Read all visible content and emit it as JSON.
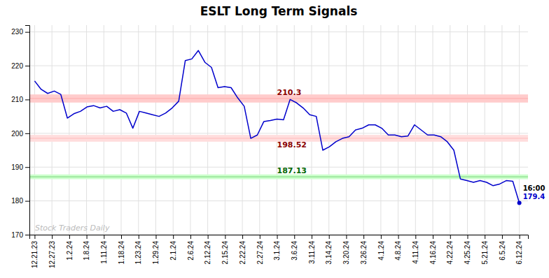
{
  "chart_data": {
    "type": "line",
    "title": "ESLT Long Term Signals",
    "color": "#0000cc",
    "grid": true,
    "ylim": [
      170,
      232
    ],
    "yticks": [
      170,
      180,
      190,
      200,
      210,
      220,
      230
    ],
    "xlim": [
      -0.3,
      28.5
    ],
    "xticks": [
      {
        "value": 0,
        "label": "12.21.23"
      },
      {
        "value": 1,
        "label": "12.27.23"
      },
      {
        "value": 2,
        "label": "1.2.24"
      },
      {
        "value": 3,
        "label": "1.8.24"
      },
      {
        "value": 4,
        "label": "1.11.24"
      },
      {
        "value": 5,
        "label": "1.18.24"
      },
      {
        "value": 6,
        "label": "1.23.24"
      },
      {
        "value": 7,
        "label": "1.29.24"
      },
      {
        "value": 8,
        "label": "2.1.24"
      },
      {
        "value": 9,
        "label": "2.6.24"
      },
      {
        "value": 10,
        "label": "2.12.24"
      },
      {
        "value": 11,
        "label": "2.15.24"
      },
      {
        "value": 12,
        "label": "2.22.24"
      },
      {
        "value": 13,
        "label": "2.27.24"
      },
      {
        "value": 14,
        "label": "3.1.24"
      },
      {
        "value": 15,
        "label": "3.6.24"
      },
      {
        "value": 16,
        "label": "3.11.24"
      },
      {
        "value": 17,
        "label": "3.14.24"
      },
      {
        "value": 18,
        "label": "3.20.24"
      },
      {
        "value": 19,
        "label": "3.26.24"
      },
      {
        "value": 20,
        "label": "4.1.24"
      },
      {
        "value": 21,
        "label": "4.8.24"
      },
      {
        "value": 22,
        "label": "4.11.24"
      },
      {
        "value": 23,
        "label": "4.16.24"
      },
      {
        "value": 24,
        "label": "4.22.24"
      },
      {
        "value": 25,
        "label": "4.25.24"
      },
      {
        "value": 26,
        "label": "5.21.24"
      },
      {
        "value": 27,
        "label": "6.5.24"
      },
      {
        "value": 28,
        "label": "6.12.24"
      }
    ],
    "values": [
      215.5,
      213.0,
      211.8,
      212.5,
      211.5,
      204.5,
      205.8,
      206.5,
      207.8,
      208.2,
      207.5,
      208.0,
      206.5,
      207.0,
      206.0,
      201.5,
      206.5,
      206.0,
      205.5,
      205.0,
      206.0,
      207.5,
      209.5,
      221.5,
      222.0,
      224.5,
      221.0,
      219.5,
      213.5,
      213.8,
      213.5,
      210.5,
      208.0,
      198.5,
      199.5,
      203.5,
      203.8,
      204.2,
      204.0,
      210.0,
      209.0,
      207.5,
      205.5,
      205.0,
      195.0,
      196.0,
      197.5,
      198.5,
      199.0,
      201.0,
      201.5,
      202.5,
      202.5,
      201.5,
      199.5,
      199.5,
      199.0,
      199.2,
      202.5,
      201.0,
      199.5,
      199.5,
      199.0,
      197.5,
      195.0,
      186.5,
      186.0,
      185.5,
      186.0,
      185.5,
      184.5,
      185.0,
      186.0,
      185.8,
      179.4
    ],
    "hlines": [
      {
        "value": 210.3,
        "band": 1.2,
        "label": "210.3",
        "color": "#ffaaaa",
        "band_color": "#ffcccc",
        "text_color": "#8b0000"
      },
      {
        "value": 198.52,
        "band": 1.0,
        "label": "198.52",
        "color": "#ffbbbb",
        "band_color": "#ffdddd",
        "text_color": "#8b0000"
      },
      {
        "value": 187.13,
        "band": 0.7,
        "label": "187.13",
        "color": "#88dd88",
        "band_color": "#ccffcc",
        "text_color": "#006600"
      }
    ],
    "annotations": [
      "16:00",
      "179.4"
    ],
    "watermark": "Stock Traders Daily"
  }
}
